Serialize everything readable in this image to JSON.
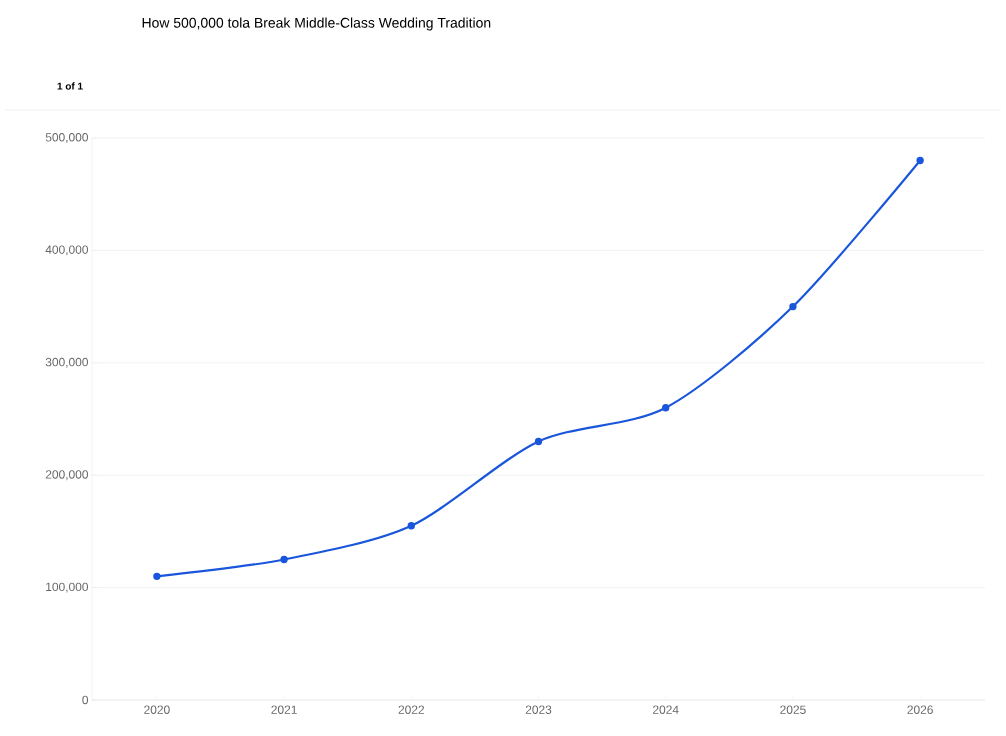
{
  "chart_data": {
    "type": "line",
    "title": "How 500,000 tola Break Middle-Class Wedding Tradition",
    "annotations": [
      "1 of 1"
    ],
    "categories": [
      "2020",
      "2021",
      "2022",
      "2023",
      "2024",
      "2025",
      "2026"
    ],
    "series": [
      {
        "color": "#1a56db",
        "values": [
          110000,
          125000,
          155000,
          230000,
          260000,
          350000,
          480000
        ]
      }
    ],
    "ylim": [
      0,
      500000
    ],
    "yticks": [
      {
        "value": 0,
        "label": "0"
      },
      {
        "value": 100000,
        "label": "100,000"
      },
      {
        "value": 200000,
        "label": "200,000"
      },
      {
        "value": 300000,
        "label": "300,000"
      },
      {
        "value": 400000,
        "label": "400,000"
      },
      {
        "value": 500000,
        "label": "500,000"
      }
    ],
    "grid": "y",
    "marker": "circle",
    "line_style": "solid"
  }
}
